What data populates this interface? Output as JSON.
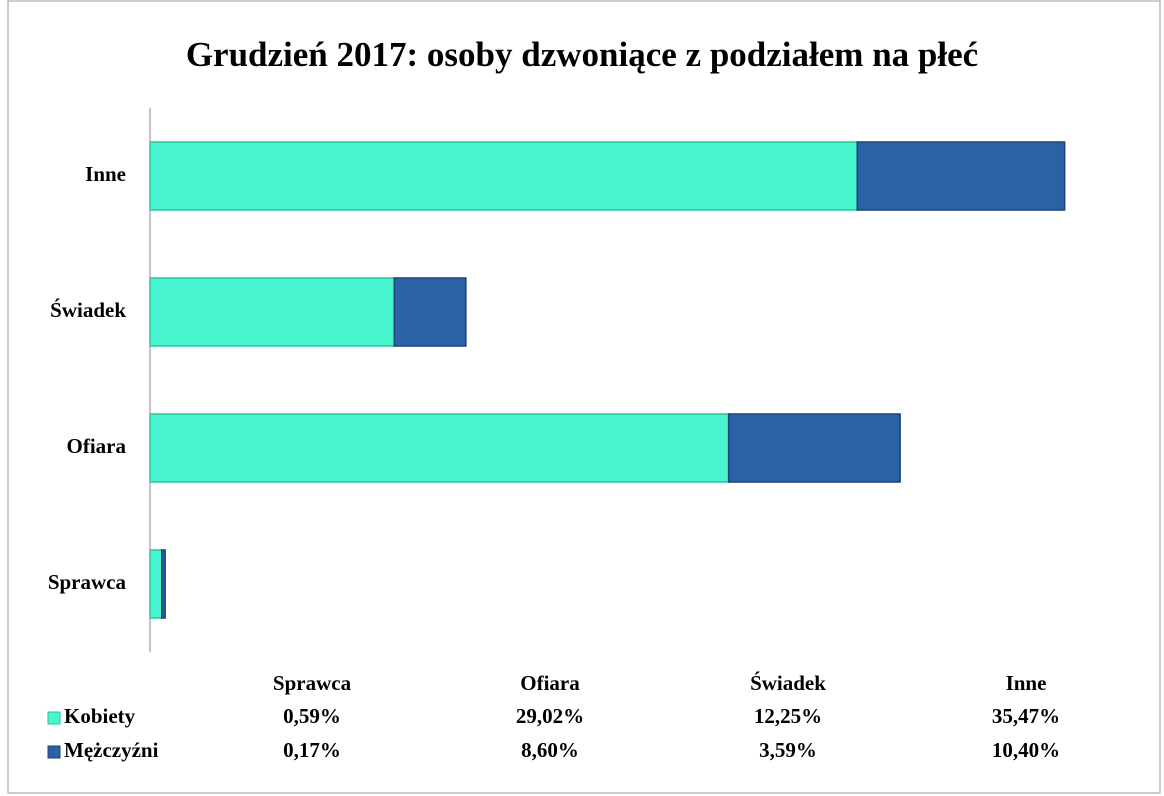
{
  "chart_data": {
    "type": "stacked_bar_horizontal",
    "title": "Grudzień 2017: osoby dzwoniące z podziałem na płeć",
    "categories": [
      "Sprawca",
      "Ofiara",
      "Świadek",
      "Inne"
    ],
    "series": [
      {
        "name": "Kobiety",
        "color": "#47f5cf",
        "values": [
          0.59,
          29.02,
          12.25,
          35.47
        ],
        "value_labels": [
          "0,59%",
          "29,02%",
          "12,25%",
          "35,47%"
        ]
      },
      {
        "name": "Mężczyźni",
        "color": "#2b62a6",
        "values": [
          0.17,
          8.6,
          3.59,
          10.4
        ],
        "value_labels": [
          "0,17%",
          "8,60%",
          "3,59%",
          "10,40%"
        ]
      }
    ],
    "xlim": [
      0,
      50
    ]
  }
}
